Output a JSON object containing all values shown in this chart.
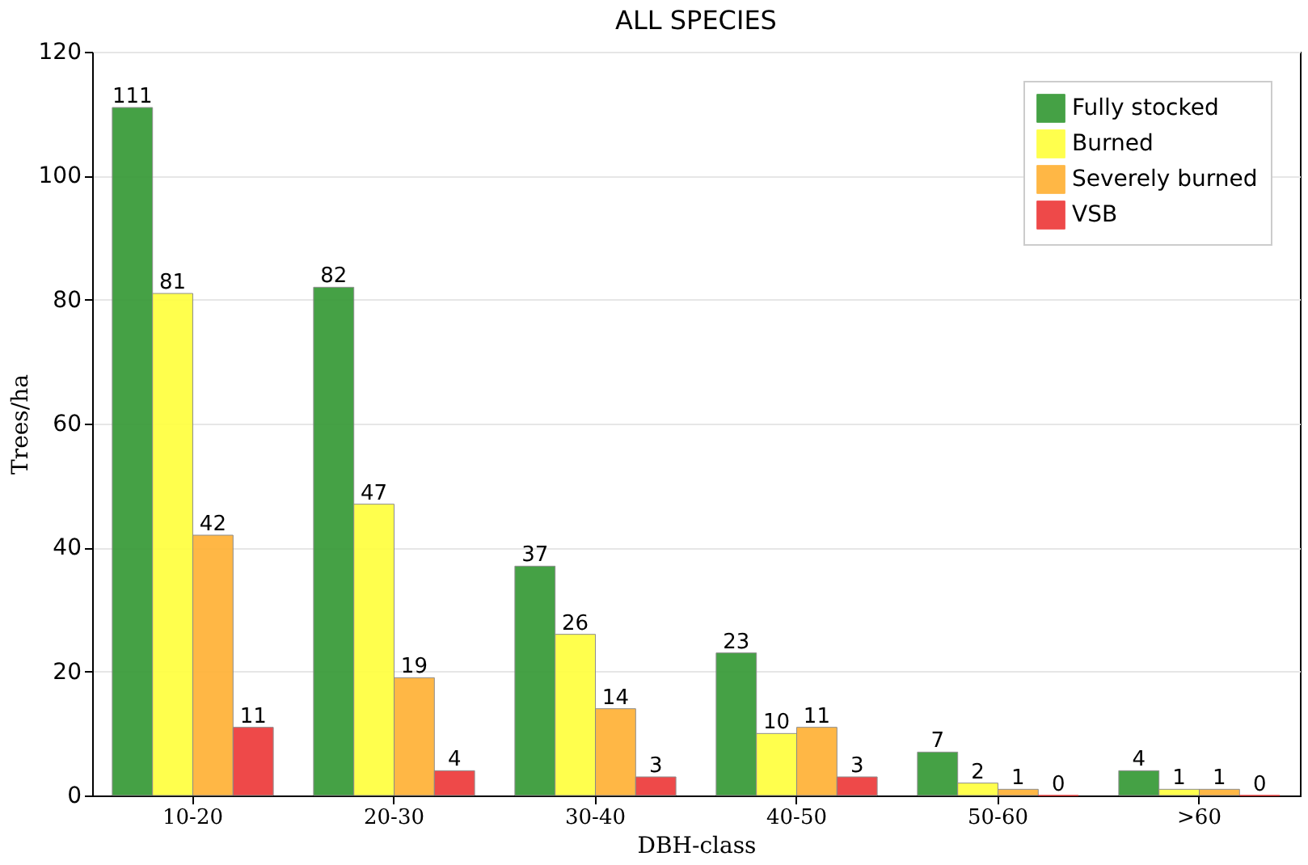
{
  "chart_data": {
    "type": "bar",
    "title": "ALL SPECIES",
    "xlabel": "DBH-class",
    "ylabel": "Trees/ha",
    "categories": [
      "10-20",
      "20-30",
      "30-40",
      "40-50",
      "50-60",
      ">60"
    ],
    "series": [
      {
        "name": "Fully stocked",
        "color": "#3c9c3c",
        "values": [
          111,
          82,
          37,
          23,
          7,
          4
        ]
      },
      {
        "name": "Burned",
        "color": "#ffff44",
        "values": [
          81,
          47,
          26,
          10,
          2,
          1
        ]
      },
      {
        "name": "Severely burned",
        "color": "#ffb43c",
        "values": [
          42,
          19,
          14,
          11,
          1,
          1
        ]
      },
      {
        "name": "VSB",
        "color": "#ee4040",
        "values": [
          11,
          4,
          3,
          3,
          0,
          0
        ]
      }
    ],
    "ylim": [
      0,
      120
    ],
    "yticks": [
      0,
      20,
      40,
      60,
      80,
      100,
      120
    ],
    "grid": "y",
    "legend": "top right",
    "data_labels": true
  }
}
